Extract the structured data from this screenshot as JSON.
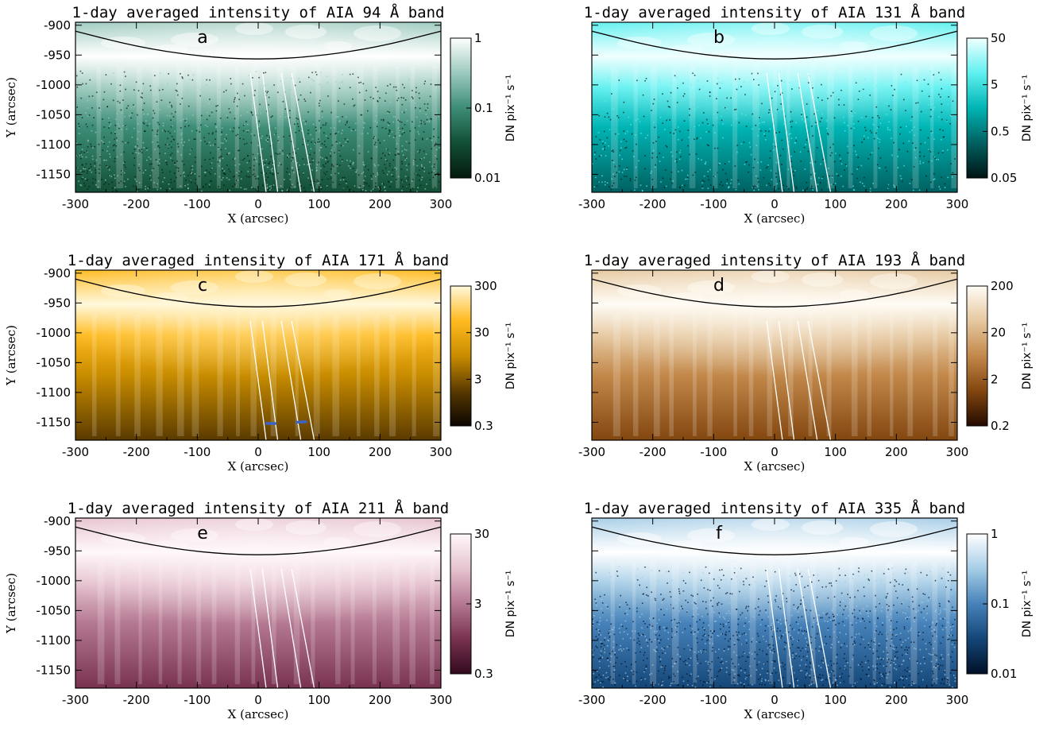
{
  "figure": {
    "panels": [
      {
        "letter": "a",
        "title": "1-day averaged intensity of AIA 94 Å band",
        "colors": [
          "#041a0c",
          "#124f36",
          "#3c8c76",
          "#9ccabe",
          "#ffffff"
        ],
        "noise": 0.55,
        "show_ylabels": true,
        "colorbar": {
          "ticks": [
            {
              "label": "1",
              "frac": 1.0
            },
            {
              "label": "0.1",
              "frac": 0.5
            },
            {
              "label": "0.01",
              "frac": 0.0
            }
          ],
          "label": "DN pix⁻¹ s⁻¹"
        }
      },
      {
        "letter": "b",
        "title": "1-day averaged intensity of AIA 131 Å band",
        "colors": [
          "#001414",
          "#006060",
          "#00b4b4",
          "#5ff0f0",
          "#f0ffff"
        ],
        "noise": 0.3,
        "show_ylabels": false,
        "colorbar": {
          "ticks": [
            {
              "label": "50",
              "frac": 1.0
            },
            {
              "label": "5",
              "frac": 0.667
            },
            {
              "label": "0.5",
              "frac": 0.333
            },
            {
              "label": "0.05",
              "frac": 0.0
            }
          ],
          "label": "DN pix⁻¹ s⁻¹"
        }
      },
      {
        "letter": "c",
        "title": "1-day averaged intensity of AIA 171 Å band",
        "colors": [
          "#0a0500",
          "#5a3a00",
          "#c88c00",
          "#ffba1e",
          "#fff8dc"
        ],
        "noise": 0.05,
        "show_ylabels": true,
        "colorbar": {
          "ticks": [
            {
              "label": "300",
              "frac": 1.0
            },
            {
              "label": "30",
              "frac": 0.667
            },
            {
              "label": "3",
              "frac": 0.333
            },
            {
              "label": "0.3",
              "frac": 0.0
            }
          ],
          "label": "DN pix⁻¹ s⁻¹"
        }
      },
      {
        "letter": "d",
        "title": "1-day averaged intensity of AIA 193 Å band",
        "colors": [
          "#240a00",
          "#82460f",
          "#c2884a",
          "#e6c8a0",
          "#fffcf5"
        ],
        "noise": 0.04,
        "show_ylabels": false,
        "colorbar": {
          "ticks": [
            {
              "label": "200",
              "frac": 1.0
            },
            {
              "label": "20",
              "frac": 0.667
            },
            {
              "label": "2",
              "frac": 0.333
            },
            {
              "label": "0.2",
              "frac": 0.0
            }
          ],
          "label": "DN pix⁻¹ s⁻¹"
        }
      },
      {
        "letter": "e",
        "title": "1-day averaged intensity of AIA 211 Å band",
        "colors": [
          "#320a1e",
          "#783250",
          "#b47891",
          "#e6c3d0",
          "#fff8fa"
        ],
        "noise": 0.04,
        "show_ylabels": true,
        "colorbar": {
          "ticks": [
            {
              "label": "30",
              "frac": 1.0
            },
            {
              "label": "3",
              "frac": 0.5
            },
            {
              "label": "0.3",
              "frac": 0.0
            }
          ],
          "label": "DN pix⁻¹ s⁻¹"
        }
      },
      {
        "letter": "f",
        "title": "1-day averaged intensity of AIA 335 Å band",
        "colors": [
          "#001028",
          "#144678",
          "#4682b9",
          "#a5cde6",
          "#ffffff"
        ],
        "noise": 0.6,
        "show_ylabels": false,
        "colorbar": {
          "ticks": [
            {
              "label": "1",
              "frac": 1.0
            },
            {
              "label": "0.1",
              "frac": 0.5
            },
            {
              "label": "0.01",
              "frac": 0.0
            }
          ],
          "label": "DN pix⁻¹ s⁻¹"
        }
      }
    ]
  },
  "chart_data": {
    "type": "heatmap",
    "xlabel": "X (arcsec)",
    "ylabel": "Y (arcsec)",
    "xlim": [
      -300,
      300
    ],
    "ylim": [
      -1180,
      -895
    ],
    "xticks": [
      -300,
      -200,
      -100,
      0,
      100,
      200,
      300
    ],
    "yticks": [
      -900,
      -950,
      -1000,
      -1050,
      -1100,
      -1150
    ],
    "limb_curve": {
      "x": [
        -300,
        -200,
        -100,
        0,
        100,
        200,
        300
      ],
      "y": [
        -910,
        -936,
        -952,
        -958,
        -952,
        -936,
        -910
      ]
    },
    "slits": [
      {
        "start": [
          -13,
          -980
        ],
        "end": [
          13,
          -1180
        ]
      },
      {
        "start": [
          7,
          -980
        ],
        "end": [
          32,
          -1180
        ]
      },
      {
        "start": [
          38,
          -980
        ],
        "end": [
          70,
          -1180
        ]
      },
      {
        "start": [
          55,
          -980
        ],
        "end": [
          92,
          -1180
        ]
      }
    ],
    "blue_marks": {
      "panel": "c",
      "color": "#3c64c8",
      "segments": [
        {
          "x": [
            12,
            30
          ],
          "y": [
            -1152,
            -1152
          ]
        },
        {
          "x": [
            62,
            80
          ],
          "y": [
            -1150,
            -1149
          ]
        }
      ]
    }
  }
}
